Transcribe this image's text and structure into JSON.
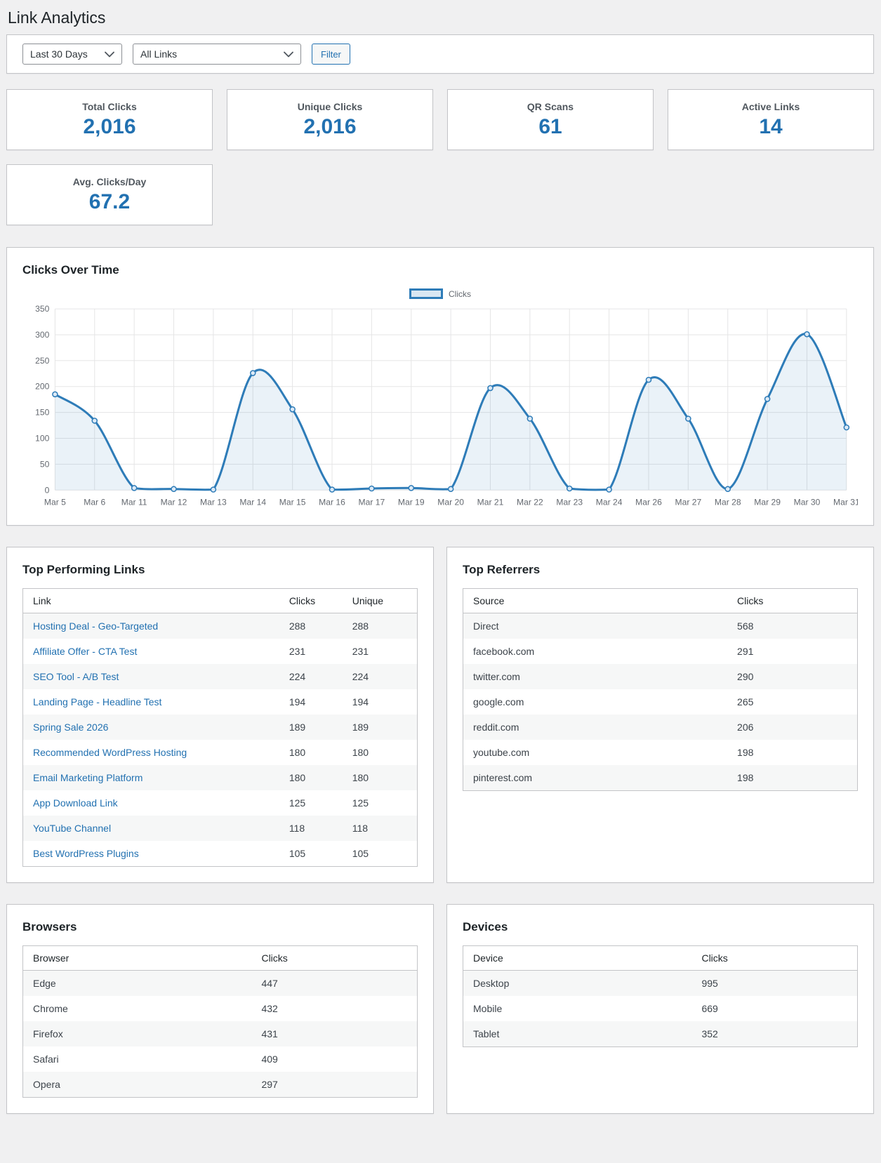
{
  "page_title": "Link Analytics",
  "filters": {
    "date_range": "Last 30 Days",
    "link_filter": "All Links",
    "filter_button": "Filter"
  },
  "stats": [
    {
      "label": "Total Clicks",
      "value": "2,016"
    },
    {
      "label": "Unique Clicks",
      "value": "2,016"
    },
    {
      "label": "QR Scans",
      "value": "61"
    },
    {
      "label": "Active Links",
      "value": "14"
    },
    {
      "label": "Avg. Clicks/Day",
      "value": "67.2"
    }
  ],
  "chart_data": {
    "type": "line",
    "title": "Clicks Over Time",
    "legend": [
      "Clicks"
    ],
    "legend_position": "top-center",
    "grid": true,
    "area_fill": true,
    "line_color": "#2e7cb8",
    "fill_color": "rgba(46,124,184,0.10)",
    "marker_fill": "#dbe9f6",
    "ylim": [
      0,
      350
    ],
    "ytick_step": 50,
    "x": [
      "Mar 5",
      "Mar 6",
      "Mar 11",
      "Mar 12",
      "Mar 13",
      "Mar 14",
      "Mar 15",
      "Mar 16",
      "Mar 17",
      "Mar 19",
      "Mar 20",
      "Mar 21",
      "Mar 22",
      "Mar 23",
      "Mar 24",
      "Mar 26",
      "Mar 27",
      "Mar 28",
      "Mar 29",
      "Mar 30",
      "Mar 31"
    ],
    "series": [
      {
        "name": "Clicks",
        "values": [
          185,
          134,
          4,
          2,
          1,
          226,
          156,
          1,
          3,
          4,
          2,
          197,
          138,
          3,
          1,
          213,
          138,
          2,
          176,
          301,
          121
        ]
      }
    ]
  },
  "top_links": {
    "title": "Top Performing Links",
    "columns": [
      "Link",
      "Clicks",
      "Unique"
    ],
    "rows": [
      [
        "Hosting Deal - Geo-Targeted",
        "288",
        "288"
      ],
      [
        "Affiliate Offer - CTA Test",
        "231",
        "231"
      ],
      [
        "SEO Tool - A/B Test",
        "224",
        "224"
      ],
      [
        "Landing Page - Headline Test",
        "194",
        "194"
      ],
      [
        "Spring Sale 2026",
        "189",
        "189"
      ],
      [
        "Recommended WordPress Hosting",
        "180",
        "180"
      ],
      [
        "Email Marketing Platform",
        "180",
        "180"
      ],
      [
        "App Download Link",
        "125",
        "125"
      ],
      [
        "YouTube Channel",
        "118",
        "118"
      ],
      [
        "Best WordPress Plugins",
        "105",
        "105"
      ]
    ]
  },
  "referrers": {
    "title": "Top Referrers",
    "columns": [
      "Source",
      "Clicks"
    ],
    "rows": [
      [
        "Direct",
        "568"
      ],
      [
        "facebook.com",
        "291"
      ],
      [
        "twitter.com",
        "290"
      ],
      [
        "google.com",
        "265"
      ],
      [
        "reddit.com",
        "206"
      ],
      [
        "youtube.com",
        "198"
      ],
      [
        "pinterest.com",
        "198"
      ]
    ]
  },
  "browsers": {
    "title": "Browsers",
    "columns": [
      "Browser",
      "Clicks"
    ],
    "rows": [
      [
        "Edge",
        "447"
      ],
      [
        "Chrome",
        "432"
      ],
      [
        "Firefox",
        "431"
      ],
      [
        "Safari",
        "409"
      ],
      [
        "Opera",
        "297"
      ]
    ]
  },
  "devices": {
    "title": "Devices",
    "columns": [
      "Device",
      "Clicks"
    ],
    "rows": [
      [
        "Desktop",
        "995"
      ],
      [
        "Mobile",
        "669"
      ],
      [
        "Tablet",
        "352"
      ]
    ]
  },
  "colors": {
    "accent": "#2271b1",
    "stat_value": "#2271b1",
    "chart_line": "#2e7cb8"
  }
}
